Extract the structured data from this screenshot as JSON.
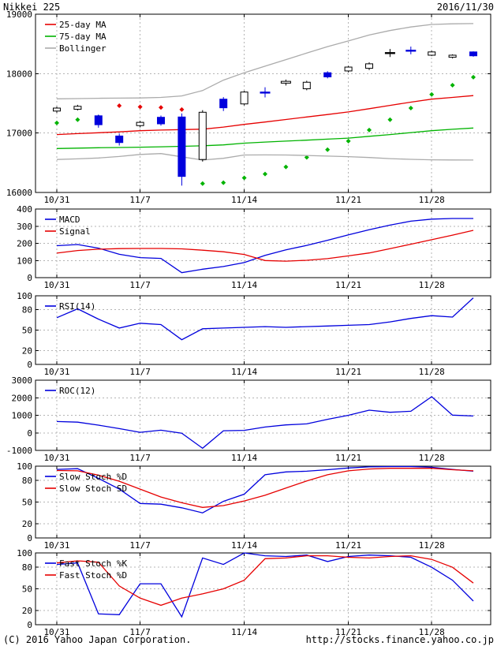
{
  "header": {
    "title": "Nikkei 225",
    "date": "2016/11/30"
  },
  "footer": {
    "copyright": "(C) 2016 Yahoo Japan Corporation.",
    "url": "http://stocks.finance.yahoo.co.jp"
  },
  "colors": {
    "blue": "#0000dd",
    "red": "#e60000",
    "green": "#00b300",
    "gray": "#ababab",
    "black": "#000000"
  },
  "x_axis": {
    "tick_labels": [
      "10/31",
      "11/7",
      "11/14",
      "11/21",
      "11/28"
    ],
    "tick_days": [
      0,
      4,
      9,
      14,
      18
    ],
    "num_points": 21
  },
  "chart_data": [
    {
      "id": "price",
      "type": "candlestick",
      "legend": [
        {
          "label": "25-day MA",
          "color": "red"
        },
        {
          "label": "75-day MA",
          "color": "green"
        },
        {
          "label": "Bollinger",
          "color": "gray"
        }
      ],
      "ylim": [
        16000,
        19000
      ],
      "yticks": [
        16000,
        17000,
        18000,
        19000
      ],
      "gridlines": [
        17000,
        18000
      ],
      "candles": [
        {
          "d": 0,
          "color": "white",
          "body": [
            17370,
            17420
          ],
          "wick": [
            17340,
            17445
          ]
        },
        {
          "d": 1,
          "color": "white",
          "body": [
            17400,
            17450
          ],
          "wick": [
            17380,
            17475
          ]
        },
        {
          "d": 2,
          "color": "blue",
          "body": [
            17140,
            17290
          ],
          "wick": [
            17090,
            17310
          ]
        },
        {
          "d": 3,
          "color": "blue",
          "body": [
            16840,
            16950
          ],
          "wick": [
            16790,
            16990
          ]
        },
        {
          "d": 4,
          "color": "white",
          "body": [
            17125,
            17180
          ],
          "wick": [
            17095,
            17205
          ]
        },
        {
          "d": 5,
          "color": "blue",
          "body": [
            17155,
            17265
          ],
          "wick": [
            17125,
            17295
          ]
        },
        {
          "d": 6,
          "color": "blue",
          "body": [
            16270,
            17270
          ],
          "wick": [
            16115,
            17330
          ]
        },
        {
          "d": 7,
          "color": "white",
          "body": [
            16555,
            17350
          ],
          "wick": [
            16520,
            17385
          ]
        },
        {
          "d": 8,
          "color": "blue",
          "body": [
            17425,
            17570
          ],
          "wick": [
            17370,
            17605
          ]
        },
        {
          "d": 9,
          "color": "white",
          "body": [
            17490,
            17690
          ],
          "wick": [
            17465,
            17710
          ]
        },
        {
          "d": 10,
          "color": "blue",
          "body": [
            17675,
            17690
          ],
          "wick": [
            17600,
            17770
          ]
        },
        {
          "d": 11,
          "color": "white",
          "body": [
            17840,
            17870
          ],
          "wick": [
            17800,
            17900
          ]
        },
        {
          "d": 12,
          "color": "white",
          "body": [
            17745,
            17855
          ],
          "wick": [
            17720,
            17880
          ]
        },
        {
          "d": 13,
          "color": "blue",
          "body": [
            17945,
            18015
          ],
          "wick": [
            17920,
            18040
          ]
        },
        {
          "d": 14,
          "color": "white",
          "body": [
            18045,
            18110
          ],
          "wick": [
            18020,
            18130
          ]
        },
        {
          "d": 15,
          "color": "white",
          "body": [
            18090,
            18165
          ],
          "wick": [
            18060,
            18190
          ]
        },
        {
          "d": 16,
          "color": "black",
          "body": [
            18345,
            18355
          ],
          "wick": [
            18280,
            18415
          ]
        },
        {
          "d": 17,
          "color": "blue",
          "body": [
            18385,
            18395
          ],
          "wick": [
            18325,
            18455
          ]
        },
        {
          "d": 18,
          "color": "white",
          "body": [
            18310,
            18365
          ],
          "wick": [
            18295,
            18385
          ]
        },
        {
          "d": 19,
          "color": "white",
          "body": [
            18275,
            18310
          ],
          "wick": [
            18255,
            18325
          ]
        },
        {
          "d": 20,
          "color": "blue",
          "body": [
            18300,
            18365
          ],
          "wick": [
            18285,
            18375
          ]
        }
      ],
      "dots": [
        {
          "d": 0,
          "v": 17170,
          "color": "green"
        },
        {
          "d": 1,
          "v": 17225,
          "color": "green"
        },
        {
          "d": 2,
          "v": 17270,
          "color": "green"
        },
        {
          "d": 3,
          "v": 17460,
          "color": "red"
        },
        {
          "d": 4,
          "v": 17440,
          "color": "red"
        },
        {
          "d": 5,
          "v": 17430,
          "color": "red"
        },
        {
          "d": 6,
          "v": 17395,
          "color": "red"
        },
        {
          "d": 7,
          "v": 16150,
          "color": "green"
        },
        {
          "d": 8,
          "v": 16165,
          "color": "green"
        },
        {
          "d": 9,
          "v": 16245,
          "color": "green"
        },
        {
          "d": 10,
          "v": 16310,
          "color": "green"
        },
        {
          "d": 11,
          "v": 16430,
          "color": "green"
        },
        {
          "d": 12,
          "v": 16590,
          "color": "green"
        },
        {
          "d": 13,
          "v": 16720,
          "color": "green"
        },
        {
          "d": 14,
          "v": 16865,
          "color": "green"
        },
        {
          "d": 15,
          "v": 17050,
          "color": "green"
        },
        {
          "d": 16,
          "v": 17225,
          "color": "green"
        },
        {
          "d": 17,
          "v": 17420,
          "color": "green"
        },
        {
          "d": 18,
          "v": 17650,
          "color": "green"
        },
        {
          "d": 19,
          "v": 17805,
          "color": "green"
        },
        {
          "d": 20,
          "v": 17940,
          "color": "green"
        }
      ],
      "series": [
        {
          "name": "bollinger-upper",
          "color": "gray",
          "values": [
            17575,
            17580,
            17585,
            17588,
            17590,
            17600,
            17625,
            17715,
            17890,
            18015,
            18125,
            18235,
            18345,
            18455,
            18550,
            18650,
            18725,
            18785,
            18828,
            18838,
            18842
          ]
        },
        {
          "name": "bollinger-lower",
          "color": "gray",
          "values": [
            16555,
            16565,
            16580,
            16605,
            16640,
            16655,
            16600,
            16545,
            16575,
            16630,
            16632,
            16630,
            16622,
            16612,
            16602,
            16588,
            16570,
            16558,
            16550,
            16547,
            16545
          ]
        },
        {
          "name": "ma-25-day",
          "color": "red",
          "values": [
            16975,
            16990,
            17005,
            17020,
            17040,
            17050,
            17058,
            17065,
            17100,
            17145,
            17185,
            17228,
            17270,
            17312,
            17355,
            17410,
            17465,
            17520,
            17570,
            17600,
            17630
          ]
        },
        {
          "name": "ma-75-day",
          "color": "green",
          "values": [
            16740,
            16746,
            16752,
            16757,
            16762,
            16769,
            16776,
            16786,
            16800,
            16830,
            16848,
            16864,
            16880,
            16897,
            16915,
            16945,
            16975,
            17008,
            17040,
            17063,
            17085
          ]
        }
      ]
    },
    {
      "id": "macd",
      "type": "line",
      "legend": [
        {
          "label": "MACD",
          "color": "blue"
        },
        {
          "label": "Signal",
          "color": "red"
        }
      ],
      "ylim": [
        0,
        400
      ],
      "yticks": [
        0,
        100,
        200,
        300,
        400
      ],
      "gridlines": [
        100,
        200,
        300
      ],
      "series": [
        {
          "name": "MACD",
          "color": "blue",
          "values": [
            186,
            193,
            172,
            136,
            117,
            112,
            29,
            49,
            65,
            88,
            130,
            162,
            188,
            218,
            249,
            279,
            306,
            329,
            341,
            345,
            345
          ]
        },
        {
          "name": "Signal",
          "color": "red",
          "values": [
            143,
            158,
            166,
            169,
            170,
            170,
            168,
            160,
            151,
            135,
            100,
            96,
            101,
            111,
            127,
            144,
            169,
            195,
            221,
            248,
            276
          ]
        }
      ]
    },
    {
      "id": "rsi",
      "type": "line",
      "legend": [
        {
          "label": "RSI(14)",
          "color": "blue"
        }
      ],
      "ylim": [
        0,
        100
      ],
      "yticks": [
        0,
        20,
        50,
        80,
        100
      ],
      "gridlines": [
        20,
        50,
        80
      ],
      "series": [
        {
          "name": "RSI(14)",
          "color": "blue",
          "values": [
            68,
            81,
            66,
            53,
            60,
            58,
            36,
            52,
            53,
            54,
            55,
            54,
            55,
            56,
            57,
            58,
            62,
            67,
            71,
            69,
            97
          ]
        }
      ]
    },
    {
      "id": "roc",
      "type": "line",
      "legend": [
        {
          "label": "ROC(12)",
          "color": "blue"
        }
      ],
      "ylim": [
        -1000,
        3000
      ],
      "yticks": [
        -1000,
        0,
        1000,
        2000,
        3000
      ],
      "gridlines": [
        0,
        1000,
        2000
      ],
      "series": [
        {
          "name": "ROC(12)",
          "color": "blue",
          "values": [
            645,
            610,
            440,
            240,
            30,
            150,
            -20,
            -880,
            120,
            140,
            330,
            450,
            510,
            770,
            1000,
            1290,
            1170,
            1230,
            2060,
            1010,
            960
          ]
        }
      ]
    },
    {
      "id": "slow-stoch",
      "type": "line",
      "legend": [
        {
          "label": "Slow Stoch %D",
          "color": "blue"
        },
        {
          "label": "Slow Stoch SD",
          "color": "red"
        }
      ],
      "ylim": [
        0,
        100
      ],
      "yticks": [
        0,
        20,
        50,
        80,
        100
      ],
      "gridlines": [
        20,
        50,
        80
      ],
      "series": [
        {
          "name": "Slow Stoch %D",
          "color": "blue",
          "values": [
            95.5,
            96.5,
            83,
            68,
            48,
            47,
            42,
            35,
            51,
            61,
            88,
            92,
            93,
            95,
            97.5,
            99,
            99.5,
            99.5,
            98.5,
            95.5,
            93
          ]
        },
        {
          "name": "Slow Stoch SD",
          "color": "red",
          "values": [
            94,
            93.5,
            87.5,
            79,
            68,
            57,
            49,
            42.5,
            45,
            51.5,
            59.5,
            69.5,
            79.5,
            88,
            93.5,
            96,
            97,
            97,
            97,
            95,
            93.5
          ]
        }
      ]
    },
    {
      "id": "fast-stoch",
      "type": "line",
      "legend": [
        {
          "label": "Fast Stoch %K",
          "color": "blue"
        },
        {
          "label": "Fast Stoch %D",
          "color": "red"
        }
      ],
      "ylim": [
        0,
        100
      ],
      "yticks": [
        0,
        20,
        50,
        80,
        100
      ],
      "gridlines": [
        20,
        50,
        80
      ],
      "series": [
        {
          "name": "Fast Stoch %K",
          "color": "blue",
          "values": [
            84,
            86,
            15,
            14,
            57,
            57,
            11,
            93,
            84,
            100,
            96,
            95,
            97,
            88,
            95,
            97,
            96,
            94,
            80,
            62,
            33
          ]
        },
        {
          "name": "Fast Stoch %D",
          "color": "red",
          "values": [
            86,
            89,
            87,
            54,
            37,
            27,
            37,
            43,
            50,
            62,
            92,
            93,
            96,
            96,
            94,
            93,
            95,
            96,
            91,
            80,
            58
          ]
        }
      ]
    }
  ]
}
